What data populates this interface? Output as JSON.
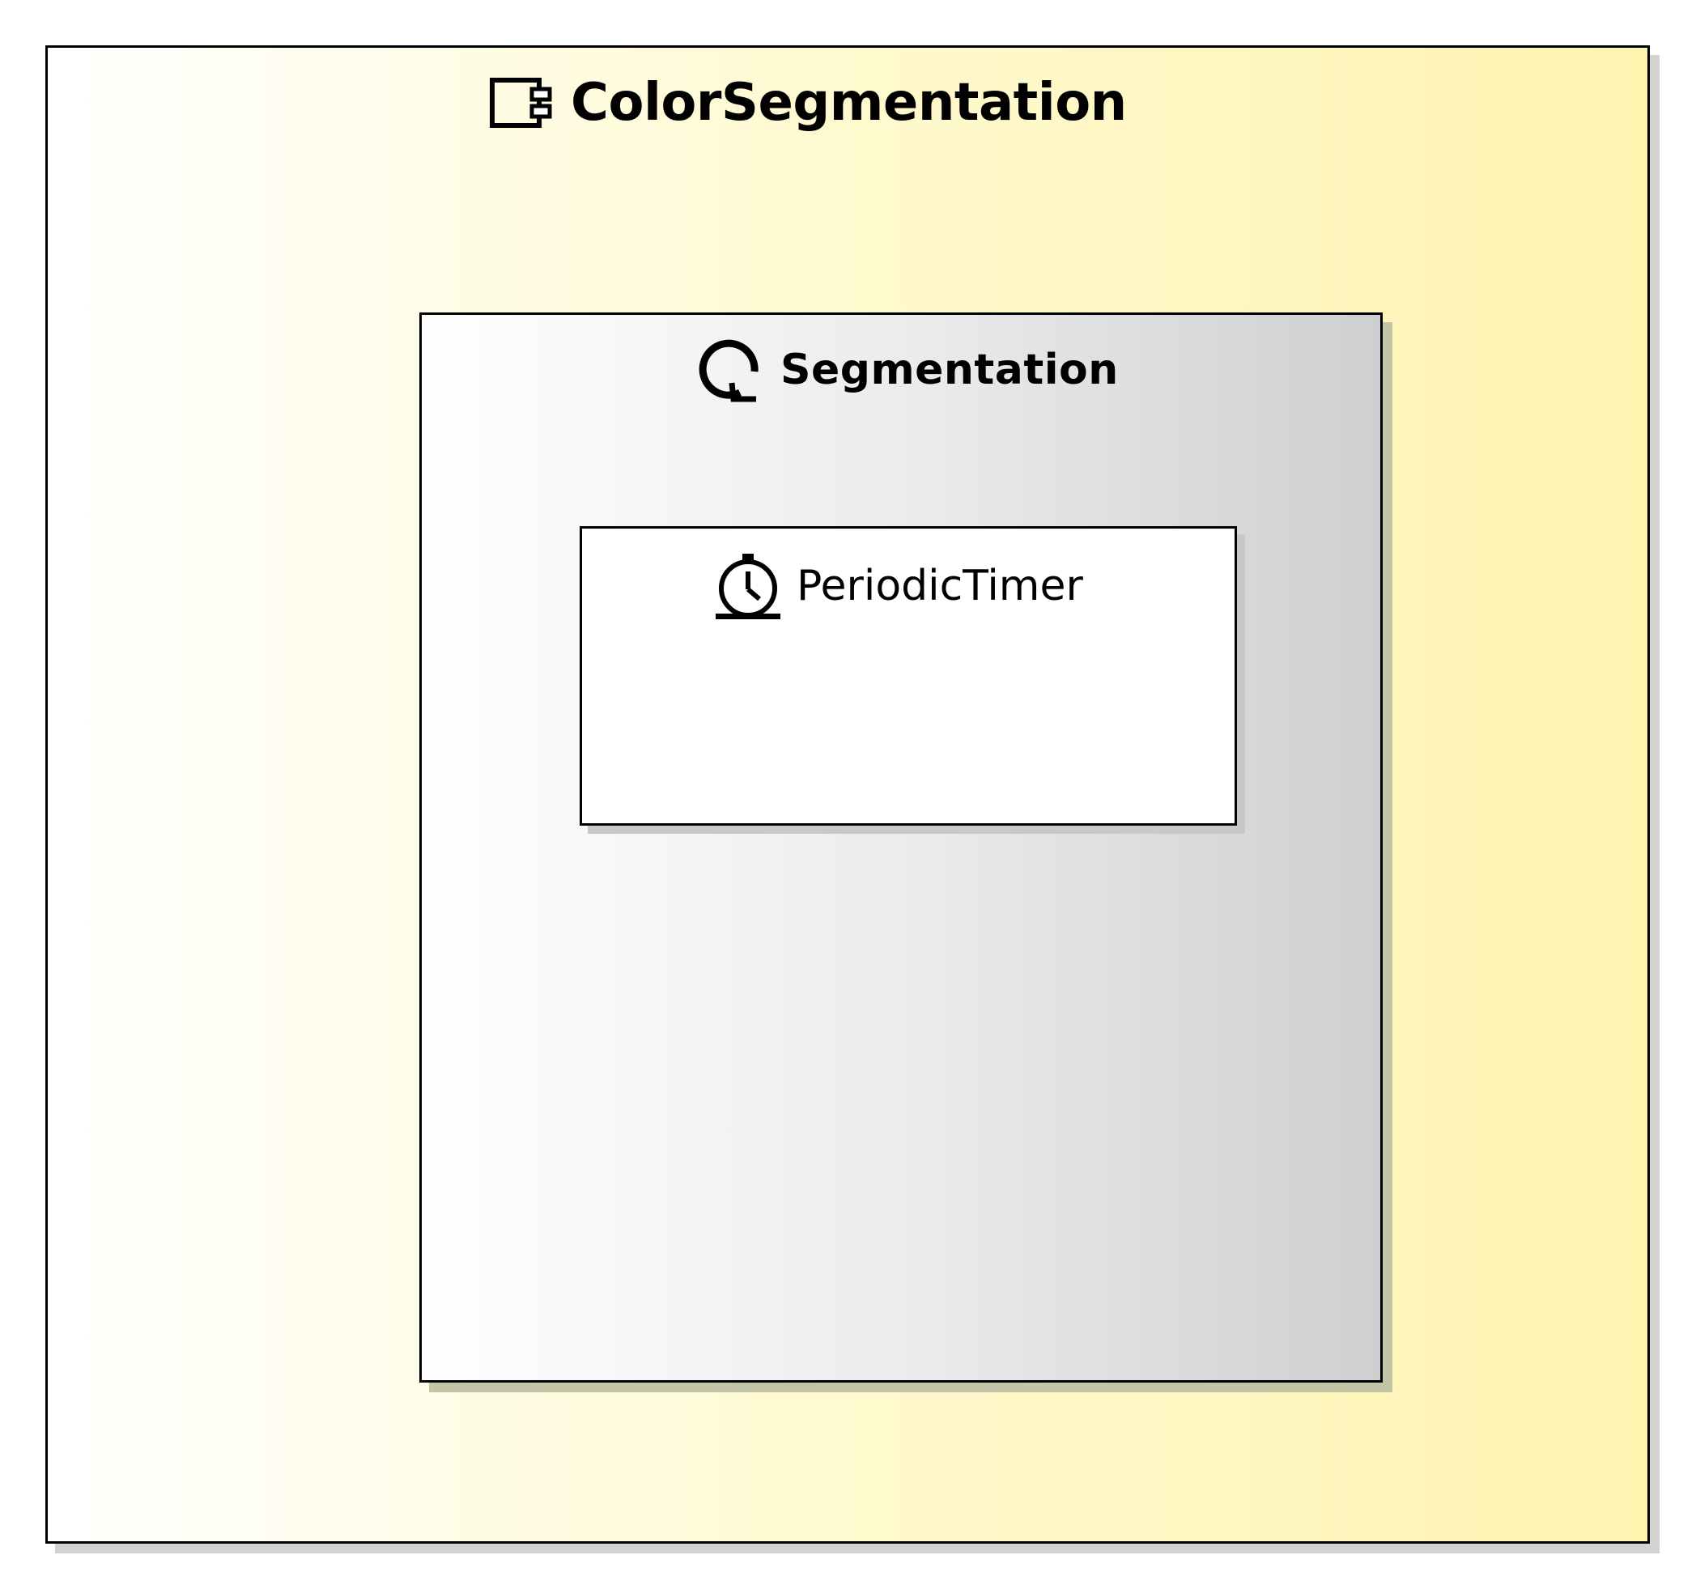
{
  "diagram": {
    "component": {
      "name": "ColorSegmentation",
      "icon": "component-icon",
      "background_gradient": [
        "#ffffff",
        "#fff3b0"
      ],
      "activity": {
        "name": "Segmentation",
        "icon": "activity-loop-icon",
        "background_gradient": [
          "#ffffff",
          "#cfcfcf"
        ],
        "timer": {
          "name": "PeriodicTimer",
          "icon": "stopwatch-icon",
          "background": "#ffffff"
        }
      }
    }
  }
}
